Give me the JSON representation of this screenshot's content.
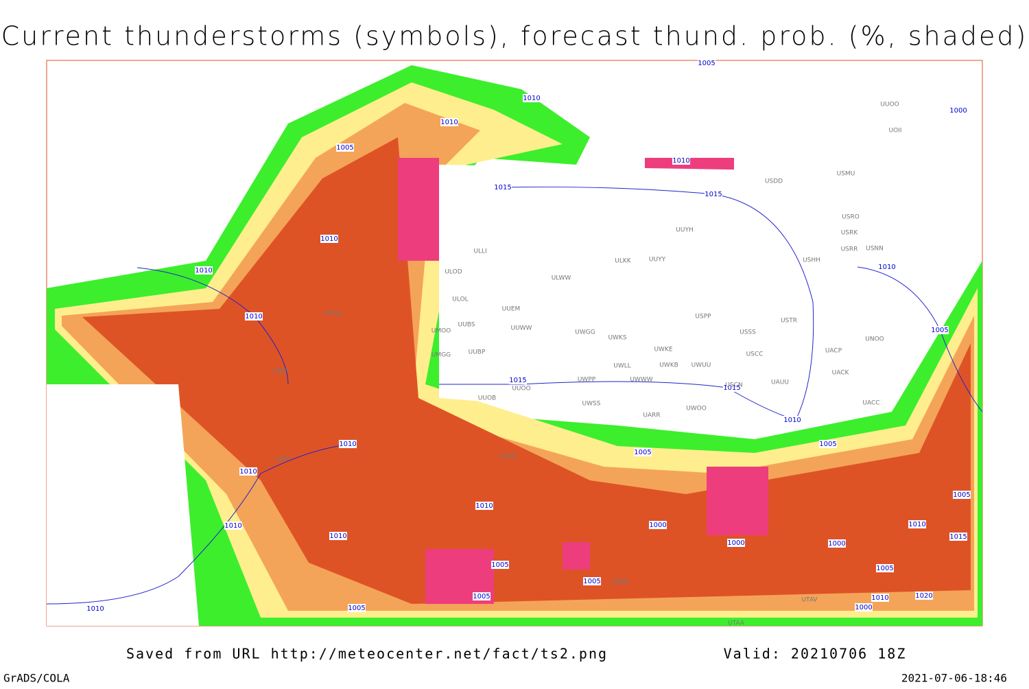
{
  "header": {
    "title": "Current thunderstorms (symbols), forecast thund. prob. (%, shaded)"
  },
  "isobar_labels": [
    "1005",
    "1010",
    "1010",
    "1005",
    "1015",
    "1010",
    "1015",
    "1000",
    "1010",
    "1010",
    "1010",
    "1010",
    "1005",
    "1015",
    "1015",
    "1010",
    "1010",
    "1005",
    "1005",
    "1010",
    "1010",
    "1000",
    "1010",
    "1010",
    "1000",
    "1000",
    "1005",
    "1005",
    "1005",
    "1005",
    "1005",
    "1010",
    "1000",
    "1010",
    "1020",
    "1005",
    "1010",
    "1015"
  ],
  "station_labels": [
    "UUOO",
    "UOII",
    "USDD",
    "USMU",
    "USRO",
    "USRK",
    "USNN",
    "USRR",
    "USHH",
    "UUYH",
    "ULKK",
    "UUYY",
    "ULWW",
    "ULOD",
    "ULOL",
    "UUEM",
    "UUBS",
    "UUWW",
    "UMOO",
    "UWGG",
    "UWKS",
    "USSS",
    "USTR",
    "USPP",
    "UMGG",
    "UUBP",
    "UWKE",
    "USCC",
    "UACP",
    "UNOO",
    "UWLL",
    "UWKB",
    "UWUU",
    "UACK",
    "UWPP",
    "UWWW",
    "USCN",
    "UAUU",
    "UUOB",
    "UUOO",
    "UWSS",
    "UACC",
    "UWOO",
    "UARR",
    "EPWA",
    "LHBP",
    "LBSF",
    "ULLI",
    "URRR",
    "UBBB",
    "UTAA",
    "UTAV"
  ],
  "footer": {
    "source": "Saved from URL http://meteocenter.net/fact/ts2.png",
    "valid": "Valid: 20210706 18Z",
    "software": "GrADS/COLA",
    "timestamp": "2021-07-06-18:46"
  }
}
